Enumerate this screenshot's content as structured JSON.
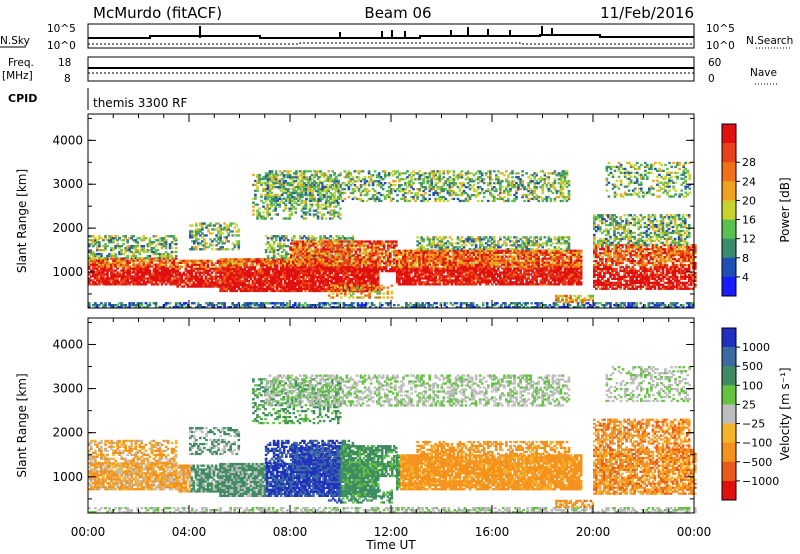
{
  "header": {
    "station": "McMurdo (fitACF)",
    "beam": "Beam 06",
    "date": "11/Feb/2016"
  },
  "params": {
    "nsky_label": "N.Sky",
    "nsearch_label": "N.Search",
    "freq_label_1": "Freq.",
    "freq_label_2": "[MHz]",
    "nave_label": "Nave",
    "cpid_label": "CPID",
    "cpid_value": "themis 3300 RF",
    "noise_ticks_left": [
      "10^5",
      "10^0"
    ],
    "noise_ticks_right": [
      "10^5",
      "10^0"
    ],
    "freq_ticks": [
      "18",
      "8"
    ],
    "nave_ticks": [
      "60",
      "0"
    ]
  },
  "chart_data": [
    {
      "type": "heatmap",
      "title": "",
      "xlabel": "Time UT",
      "ylabel": "Slant Range [km]",
      "x_ticks": [
        "00:00",
        "04:00",
        "08:00",
        "12:00",
        "16:00",
        "20:00",
        "00:00"
      ],
      "y_ticks": [
        "1000",
        "2000",
        "3000",
        "4000"
      ],
      "xlim_hours": [
        0,
        24
      ],
      "ylim_km": [
        180,
        4600
      ],
      "colorbar": {
        "label": "Power [dB]",
        "ticks": [
          "4",
          "8",
          "12",
          "16",
          "20",
          "24",
          "28"
        ],
        "colors": [
          "#1a1aff",
          "#1f4fb4",
          "#3a8c6e",
          "#5bbf4f",
          "#c8d42e",
          "#f0a21e",
          "#f07018",
          "#e8401a",
          "#e01010"
        ]
      },
      "grid": true
    },
    {
      "type": "heatmap",
      "title": "",
      "xlabel": "Time UT",
      "ylabel": "Slant Range [km]",
      "x_ticks": [
        "00:00",
        "04:00",
        "08:00",
        "12:00",
        "16:00",
        "20:00",
        "00:00"
      ],
      "y_ticks": [
        "1000",
        "2000",
        "3000",
        "4000"
      ],
      "xlim_hours": [
        0,
        24
      ],
      "ylim_km": [
        180,
        4600
      ],
      "colorbar": {
        "label": "Velocity [m s⁻¹]",
        "ticks": [
          "1000",
          "500",
          "100",
          "25",
          "−25",
          "−100",
          "−500",
          "−1000"
        ],
        "colors": [
          "#2030c0",
          "#3a6aa0",
          "#3f8c62",
          "#63c23e",
          "#bdbdbd",
          "#f5b52a",
          "#f5921e",
          "#ea5a1a",
          "#e01010"
        ]
      },
      "grid": true
    }
  ]
}
